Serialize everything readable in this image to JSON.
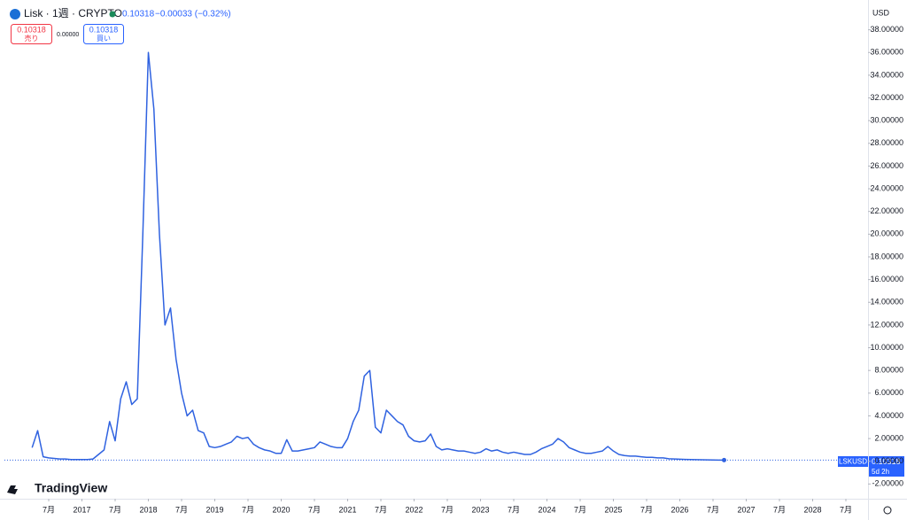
{
  "header": {
    "symbol": "Lisk · 1週 · CRYPTO",
    "last": "0.10318",
    "change": "−0.00033 (−0.32%)",
    "sell_price": "0.10318",
    "sell_label": "売り",
    "spread": "0.00000",
    "buy_price": "0.10318",
    "buy_label": "買い",
    "currency": "USD",
    "ticker": "LSKUSD",
    "countdown": "5d 2h",
    "logo": "TradingView"
  },
  "chart_data": {
    "type": "line",
    "grid": false,
    "xlim": [
      "2015-11",
      "2028-11"
    ],
    "ylim": [
      -3.3,
      40
    ],
    "xticks": [
      {
        "value": "2016-07",
        "label": "7月"
      },
      {
        "value": "2017-01",
        "label": "2017"
      },
      {
        "value": "2017-07",
        "label": "7月"
      },
      {
        "value": "2018-01",
        "label": "2018"
      },
      {
        "value": "2018-07",
        "label": "7月"
      },
      {
        "value": "2019-01",
        "label": "2019"
      },
      {
        "value": "2019-07",
        "label": "7月"
      },
      {
        "value": "2020-01",
        "label": "2020"
      },
      {
        "value": "2020-07",
        "label": "7月"
      },
      {
        "value": "2021-01",
        "label": "2021"
      },
      {
        "value": "2021-07",
        "label": "7月"
      },
      {
        "value": "2022-01",
        "label": "2022"
      },
      {
        "value": "2022-07",
        "label": "7月"
      },
      {
        "value": "2023-01",
        "label": "2023"
      },
      {
        "value": "2023-07",
        "label": "7月"
      },
      {
        "value": "2024-01",
        "label": "2024"
      },
      {
        "value": "2024-07",
        "label": "7月"
      },
      {
        "value": "2025-01",
        "label": "2025"
      },
      {
        "value": "2025-07",
        "label": "7月"
      },
      {
        "value": "2026-01",
        "label": "2026"
      },
      {
        "value": "2026-07",
        "label": "7月"
      },
      {
        "value": "2027-01",
        "label": "2027"
      },
      {
        "value": "2027-07",
        "label": "7月"
      },
      {
        "value": "2028-01",
        "label": "2028"
      },
      {
        "value": "2028-07",
        "label": "7月"
      }
    ],
    "yticks": [
      {
        "value": -2,
        "label": "-2.00000"
      },
      {
        "value": 0,
        "label": "0.00000"
      },
      {
        "value": 2,
        "label": "2.00000"
      },
      {
        "value": 4,
        "label": "4.00000"
      },
      {
        "value": 6,
        "label": "6.00000"
      },
      {
        "value": 8,
        "label": "8.00000"
      },
      {
        "value": 10,
        "label": "10.00000"
      },
      {
        "value": 12,
        "label": "12.00000"
      },
      {
        "value": 14,
        "label": "14.00000"
      },
      {
        "value": 16,
        "label": "16.00000"
      },
      {
        "value": 18,
        "label": "18.00000"
      },
      {
        "value": 20,
        "label": "20.00000"
      },
      {
        "value": 22,
        "label": "22.00000"
      },
      {
        "value": 24,
        "label": "24.00000"
      },
      {
        "value": 26,
        "label": "26.00000"
      },
      {
        "value": 28,
        "label": "28.00000"
      },
      {
        "value": 30,
        "label": "30.00000"
      },
      {
        "value": 32,
        "label": "32.00000"
      },
      {
        "value": 34,
        "label": "34.00000"
      },
      {
        "value": 36,
        "label": "36.00000"
      },
      {
        "value": 38,
        "label": "38.00000"
      }
    ],
    "x": [
      "2016-04",
      "2016-05",
      "2016-06",
      "2016-07",
      "2016-08",
      "2016-09",
      "2016-10",
      "2016-11",
      "2016-12",
      "2017-01",
      "2017-02",
      "2017-03",
      "2017-04",
      "2017-05",
      "2017-06",
      "2017-07",
      "2017-08",
      "2017-09",
      "2017-10",
      "2017-11",
      "2017-12",
      "2018-01",
      "2018-02",
      "2018-03",
      "2018-04",
      "2018-05",
      "2018-06",
      "2018-07",
      "2018-08",
      "2018-09",
      "2018-10",
      "2018-11",
      "2018-12",
      "2019-01",
      "2019-02",
      "2019-03",
      "2019-04",
      "2019-05",
      "2019-06",
      "2019-07",
      "2019-08",
      "2019-09",
      "2019-10",
      "2019-11",
      "2019-12",
      "2020-01",
      "2020-02",
      "2020-03",
      "2020-04",
      "2020-05",
      "2020-06",
      "2020-07",
      "2020-08",
      "2020-09",
      "2020-10",
      "2020-11",
      "2020-12",
      "2021-01",
      "2021-02",
      "2021-03",
      "2021-04",
      "2021-05",
      "2021-06",
      "2021-07",
      "2021-08",
      "2021-09",
      "2021-10",
      "2021-11",
      "2021-12",
      "2022-01",
      "2022-02",
      "2022-03",
      "2022-04",
      "2022-05",
      "2022-06",
      "2022-07",
      "2022-08",
      "2022-09",
      "2022-10",
      "2022-11",
      "2022-12",
      "2023-01",
      "2023-02",
      "2023-03",
      "2023-04",
      "2023-05",
      "2023-06",
      "2023-07",
      "2023-08",
      "2023-09",
      "2023-10",
      "2023-11",
      "2023-12",
      "2024-01",
      "2024-02",
      "2024-03",
      "2024-04",
      "2024-05",
      "2024-06",
      "2024-07",
      "2024-08",
      "2024-09",
      "2024-10",
      "2024-11",
      "2024-12",
      "2025-01",
      "2025-02",
      "2025-03",
      "2025-04",
      "2025-05",
      "2025-06",
      "2025-07",
      "2025-08",
      "2025-09",
      "2025-10",
      "2025-11",
      "2025-12",
      "2026-01",
      "2026-02",
      "2026-03",
      "2026-04",
      "2026-05",
      "2026-06",
      "2026-07",
      "2026-08",
      "2026-09"
    ],
    "series": [
      {
        "name": "LSKUSD",
        "color": "#2f62e0",
        "values": [
          1.2,
          2.7,
          0.4,
          0.3,
          0.25,
          0.2,
          0.2,
          0.15,
          0.15,
          0.15,
          0.15,
          0.2,
          0.6,
          1.0,
          3.5,
          1.8,
          5.5,
          7.0,
          5.0,
          5.5,
          20,
          36,
          31,
          20,
          12,
          13.5,
          9,
          6,
          4,
          4.5,
          2.7,
          2.5,
          1.3,
          1.2,
          1.3,
          1.5,
          1.7,
          2.2,
          2.0,
          2.1,
          1.5,
          1.2,
          1.0,
          0.9,
          0.7,
          0.7,
          1.9,
          0.9,
          0.9,
          1.0,
          1.1,
          1.2,
          1.7,
          1.5,
          1.3,
          1.2,
          1.2,
          2.0,
          3.5,
          4.5,
          7.5,
          8.0,
          3.0,
          2.5,
          4.5,
          4.0,
          3.5,
          3.2,
          2.2,
          1.8,
          1.7,
          1.8,
          2.4,
          1.3,
          1.0,
          1.1,
          1.0,
          0.9,
          0.9,
          0.8,
          0.7,
          0.8,
          1.1,
          0.9,
          1.0,
          0.8,
          0.7,
          0.8,
          0.7,
          0.6,
          0.6,
          0.8,
          1.1,
          1.3,
          1.5,
          2.0,
          1.7,
          1.2,
          1.0,
          0.8,
          0.7,
          0.7,
          0.8,
          0.9,
          1.3,
          0.9,
          0.6,
          0.5,
          0.45,
          0.45,
          0.4,
          0.35,
          0.35,
          0.3,
          0.3,
          0.22,
          0.2,
          0.18,
          0.16,
          0.15,
          0.14,
          0.13,
          0.12,
          0.11,
          0.105,
          0.10318
        ]
      }
    ]
  }
}
